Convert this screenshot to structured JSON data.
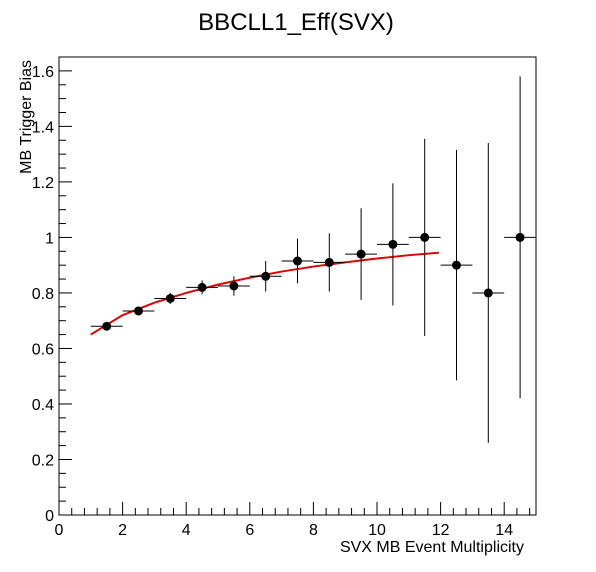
{
  "chart_data": {
    "type": "scatter",
    "title": "BBCLL1_Eff(SVX)",
    "xlabel": "SVX MB Event Multiplicity",
    "ylabel": "MB Trigger Bias",
    "xlim": [
      0,
      15
    ],
    "ylim": [
      0,
      1.65
    ],
    "x_ticks": [
      0,
      2,
      4,
      6,
      8,
      10,
      12,
      14
    ],
    "y_ticks": [
      0,
      0.2,
      0.4,
      0.6,
      0.8,
      1,
      1.2,
      1.4,
      1.6
    ],
    "x_tick_labels": [
      "0",
      "2",
      "4",
      "6",
      "8",
      "10",
      "12",
      "14"
    ],
    "y_tick_labels": [
      "0",
      "0.2",
      "0.4",
      "0.6",
      "0.8",
      "1",
      "1.2",
      "1.4",
      "1.6"
    ],
    "grid": false,
    "legend": "none",
    "series": [
      {
        "marker_color": "#000000",
        "x": [
          1.5,
          2.5,
          3.5,
          4.5,
          5.5,
          6.5,
          7.5,
          8.5,
          9.5,
          10.5,
          11.5,
          12.5,
          13.5,
          14.5
        ],
        "x_err": [
          0.5,
          0.5,
          0.5,
          0.5,
          0.5,
          0.5,
          0.5,
          0.5,
          0.5,
          0.5,
          0.5,
          0.5,
          0.5,
          0.5
        ],
        "y": [
          0.68,
          0.735,
          0.78,
          0.82,
          0.825,
          0.86,
          0.915,
          0.91,
          0.94,
          0.975,
          1.0,
          0.9,
          0.8,
          1.0
        ],
        "y_err_low": [
          0.01,
          0.015,
          0.02,
          0.025,
          0.035,
          0.055,
          0.08,
          0.105,
          0.165,
          0.22,
          0.355,
          0.415,
          0.54,
          0.58
        ],
        "y_err_high": [
          0.01,
          0.015,
          0.02,
          0.025,
          0.035,
          0.055,
          0.08,
          0.105,
          0.165,
          0.22,
          0.355,
          0.415,
          0.54,
          0.58
        ]
      }
    ],
    "fit": {
      "color": "#e00000",
      "x": [
        1.0,
        2.0,
        3.0,
        4.0,
        5.0,
        6.0,
        7.0,
        8.0,
        9.0,
        10.0,
        11.0,
        11.95
      ],
      "y": [
        0.65,
        0.72,
        0.765,
        0.8,
        0.83,
        0.855,
        0.877,
        0.895,
        0.91,
        0.924,
        0.936,
        0.945
      ]
    }
  }
}
